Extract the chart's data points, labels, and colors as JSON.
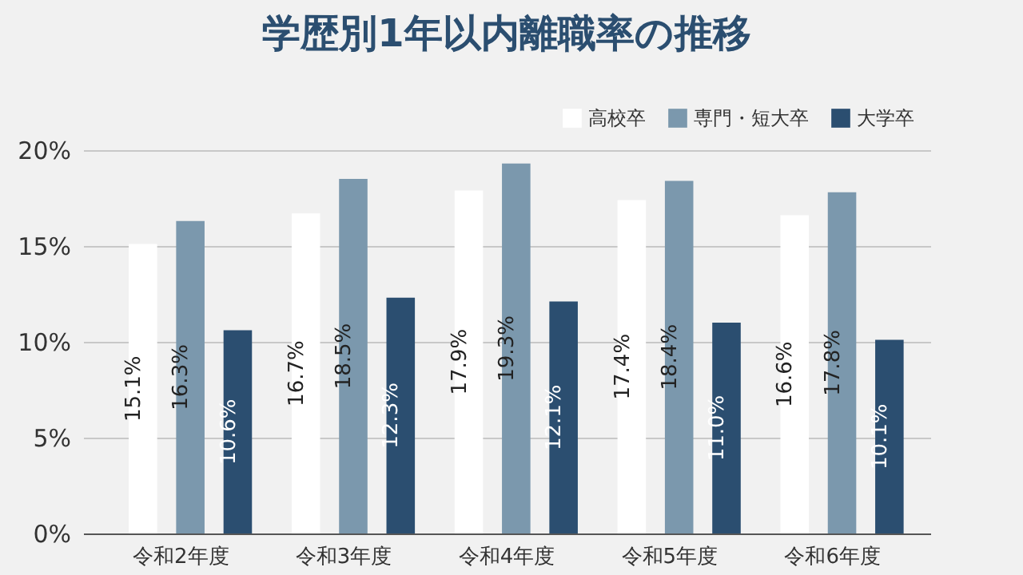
{
  "chart_data": {
    "type": "bar",
    "title": "学歴別1年以内離職率の推移",
    "categories": [
      "令和2年度",
      "令和3年度",
      "令和4年度",
      "令和5年度",
      "令和6年度"
    ],
    "series": [
      {
        "name": "高校卒",
        "color": "#ffffff",
        "values": [
          15.1,
          16.7,
          17.9,
          17.4,
          16.6
        ],
        "value_labels": [
          "15.1%",
          "16.7%",
          "17.9%",
          "17.4%",
          "16.6%"
        ]
      },
      {
        "name": "専門・短大卒",
        "color": "#7b98ad",
        "values": [
          16.3,
          18.5,
          19.3,
          18.4,
          17.8
        ],
        "value_labels": [
          "16.3%",
          "18.5%",
          "19.3%",
          "18.4%",
          "17.8%"
        ]
      },
      {
        "name": "大学卒",
        "color": "#2b4e70",
        "values": [
          10.6,
          12.3,
          12.1,
          11.0,
          10.1
        ],
        "value_labels": [
          "10.6%",
          "12.3%",
          "12.1%",
          "11.0%",
          "10.1%"
        ]
      }
    ],
    "ylim": [
      0,
      20
    ],
    "yticks": [
      {
        "value": 0,
        "label": "0%"
      },
      {
        "value": 5,
        "label": "5%"
      },
      {
        "value": 10,
        "label": "10%"
      },
      {
        "value": 15,
        "label": "15%"
      },
      {
        "value": 20,
        "label": "20%"
      }
    ],
    "grid": "y",
    "legend": "top right"
  }
}
